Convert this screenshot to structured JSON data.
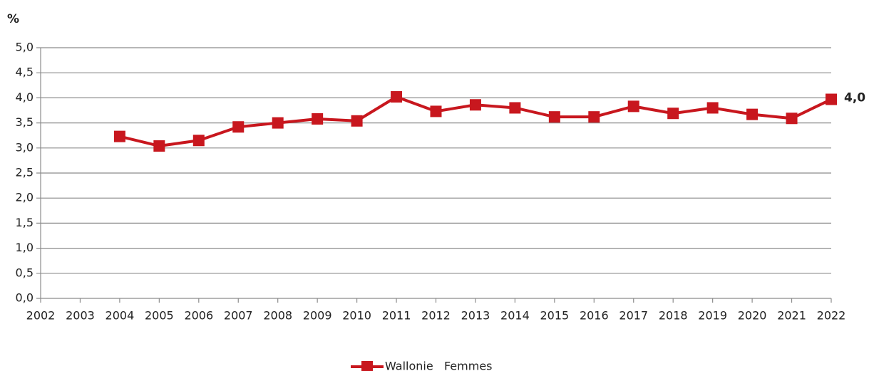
{
  "chart_data": {
    "type": "line",
    "y_label": "%",
    "categories": [
      "2002",
      "2003",
      "2004",
      "2005",
      "2006",
      "2007",
      "2008",
      "2009",
      "2010",
      "2011",
      "2012",
      "2013",
      "2014",
      "2015",
      "2016",
      "2017",
      "2018",
      "2019",
      "2020",
      "2021",
      "2022"
    ],
    "series": [
      {
        "name": "Wallonie   Femmes",
        "color": "#c8171e",
        "values": [
          null,
          null,
          3.23,
          3.04,
          3.15,
          3.42,
          3.5,
          3.58,
          3.54,
          4.02,
          3.73,
          3.86,
          3.8,
          3.62,
          3.62,
          3.83,
          3.69,
          3.8,
          3.67,
          3.59,
          3.97
        ],
        "value_labels": [
          null,
          null,
          null,
          null,
          null,
          null,
          null,
          null,
          null,
          null,
          null,
          null,
          null,
          null,
          null,
          null,
          null,
          null,
          null,
          null,
          "4,0"
        ]
      }
    ],
    "ylim": [
      0,
      5
    ],
    "yticks": [
      {
        "value": 0,
        "label": "0,0"
      },
      {
        "value": 0.5,
        "label": "0,5"
      },
      {
        "value": 1,
        "label": "1,0"
      },
      {
        "value": 1.5,
        "label": "1,5"
      },
      {
        "value": 2,
        "label": "2,0"
      },
      {
        "value": 2.5,
        "label": "2,5"
      },
      {
        "value": 3,
        "label": "3,0"
      },
      {
        "value": 3.5,
        "label": "3,5"
      },
      {
        "value": 4,
        "label": "4,0"
      },
      {
        "value": 4.5,
        "label": "4,5"
      },
      {
        "value": 5,
        "label": "5,0"
      }
    ],
    "grid": true,
    "legend": "bottom"
  }
}
